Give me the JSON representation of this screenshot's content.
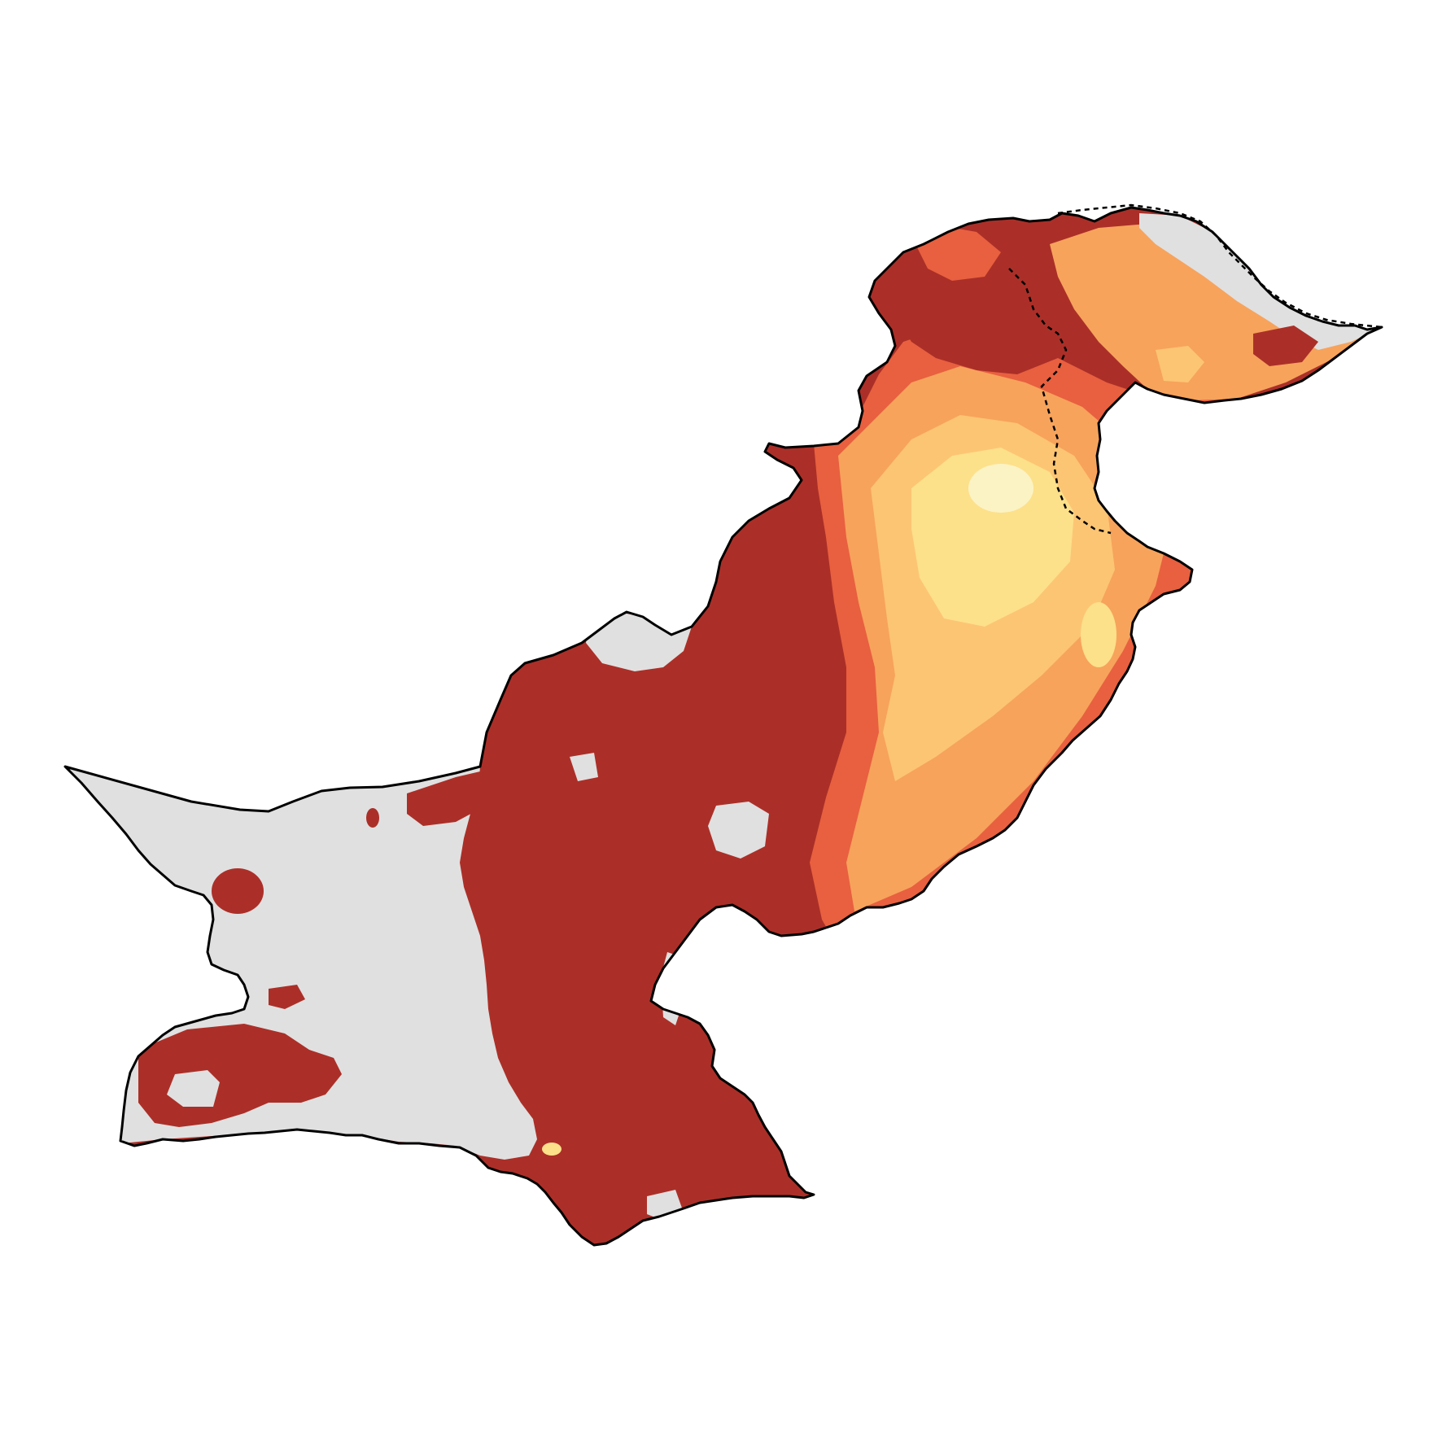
{
  "map": {
    "colors": {
      "background": "#ffffff",
      "no_data": "#e0e0e0",
      "high": "#ab2f28",
      "mid_high": "#e8603f",
      "mid": "#f7a35c",
      "mid_low": "#fcc574",
      "low": "#fde08a",
      "lightest": "#fbf3c4",
      "border": "#000000"
    },
    "legend": null,
    "regions": [
      {
        "name": "western-no-data-zone",
        "fill": "no_data"
      },
      {
        "name": "central-southern-high-zone",
        "fill": "high"
      },
      {
        "name": "eastern-gradient-zone",
        "fill": "gradient"
      },
      {
        "name": "northern-mountain-zone",
        "fill": "mixed"
      },
      {
        "name": "disputed-territory-zone",
        "fill": "mixed"
      }
    ]
  }
}
